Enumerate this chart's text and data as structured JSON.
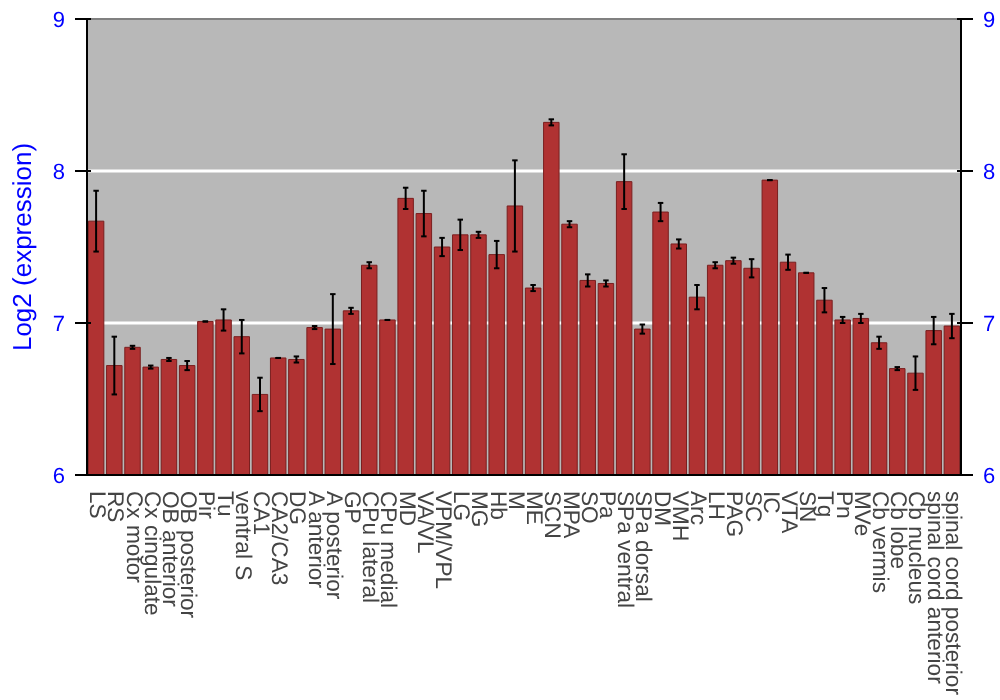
{
  "chart_data": {
    "type": "bar",
    "ylabel": "Log2 (expression)",
    "categories": [
      "LS",
      "RS",
      "Cx motor",
      "Cx cingulate",
      "OB anterior",
      "OB posterior",
      "Pir",
      "Tu",
      "ventral S",
      "CA1",
      "CA2/CA3",
      "DG",
      "A anterior",
      "A posterior",
      "GP",
      "CPu lateral",
      "CPu medial",
      "MD",
      "VA/VL",
      "VPM/VPL",
      "LG",
      "MG",
      "Hb",
      "M",
      "ME",
      "SCN",
      "MPA",
      "SO",
      "Pa",
      "SPa ventral",
      "SPa dorsal",
      "DM",
      "VMH",
      "Arc",
      "LH",
      "PAG",
      "SC",
      "IC",
      "VTA",
      "SN",
      "Tg",
      "Pn",
      "MVe",
      "Cb vermis",
      "Cb lobe",
      "Cb nucleus",
      "spinal cord anterior",
      "spinal cord posterior"
    ],
    "values": [
      7.67,
      6.72,
      6.84,
      6.71,
      6.76,
      6.72,
      7.01,
      7.02,
      6.91,
      6.53,
      6.77,
      6.76,
      6.97,
      6.96,
      7.08,
      7.38,
      7.02,
      7.82,
      7.72,
      7.5,
      7.58,
      7.58,
      7.45,
      7.77,
      7.23,
      8.32,
      7.65,
      7.28,
      7.26,
      7.93,
      6.96,
      7.73,
      7.52,
      7.17,
      7.38,
      7.41,
      7.36,
      7.94,
      7.4,
      7.33,
      7.15,
      7.02,
      7.03,
      6.87,
      6.7,
      6.67,
      6.95,
      6.98
    ],
    "errors": [
      0.2,
      0.19,
      0.01,
      0.01,
      0.01,
      0.03,
      0.0,
      0.07,
      0.11,
      0.11,
      0.0,
      0.02,
      0.01,
      0.23,
      0.02,
      0.02,
      0.0,
      0.07,
      0.15,
      0.06,
      0.1,
      0.02,
      0.09,
      0.3,
      0.02,
      0.02,
      0.02,
      0.04,
      0.02,
      0.18,
      0.03,
      0.06,
      0.03,
      0.08,
      0.02,
      0.02,
      0.06,
      0.0,
      0.05,
      0.0,
      0.08,
      0.02,
      0.03,
      0.04,
      0.01,
      0.11,
      0.09,
      0.08
    ],
    "color": "#b03232",
    "ylim": [
      6,
      9
    ],
    "yticks": [
      6,
      7,
      8,
      9
    ],
    "y2lim": [
      6,
      9
    ],
    "y2ticks": [
      6,
      7,
      8,
      9
    ],
    "grid": "y"
  }
}
